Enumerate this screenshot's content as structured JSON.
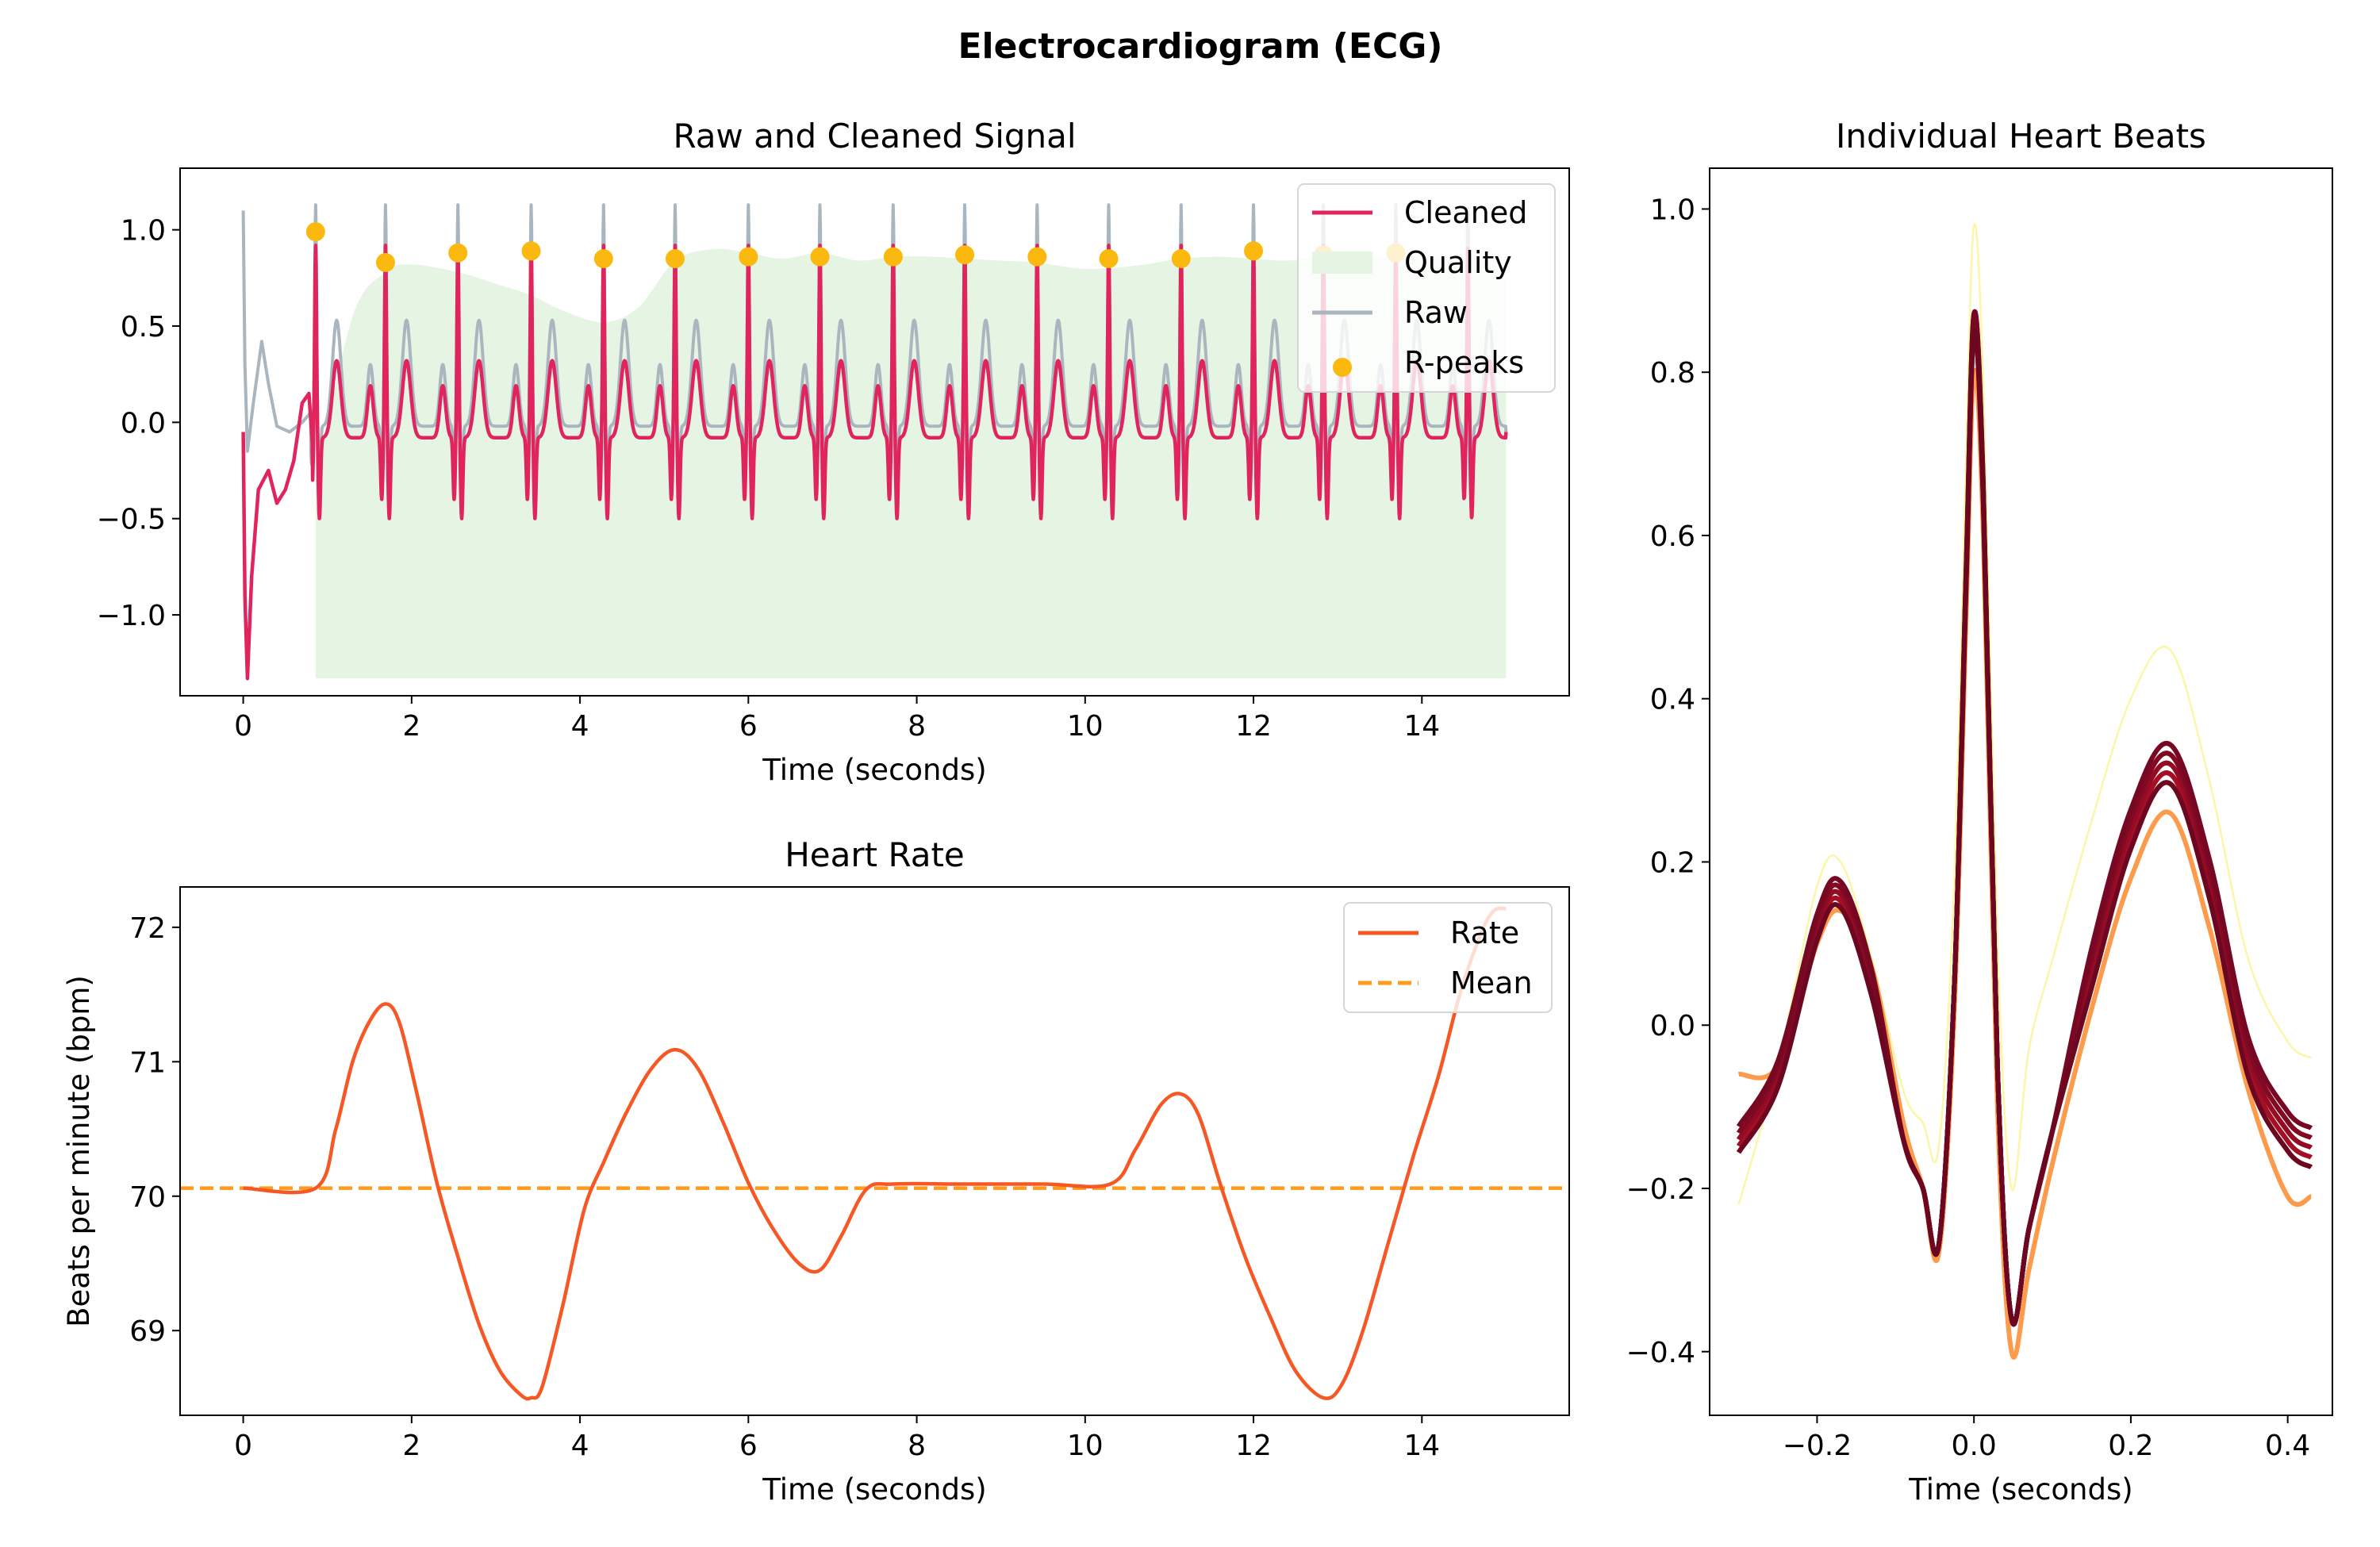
{
  "figure": {
    "suptitle": "Electrocardiogram (ECG)"
  },
  "colors": {
    "cleaned": "#e0245e",
    "raw": "#a9b6bf",
    "quality": "#e6f4e4",
    "rpeaks": "#fbb80f",
    "rate": "#f65825",
    "mean": "#ff9a1a"
  },
  "chart_data": [
    {
      "id": "raw-cleaned",
      "type": "line",
      "title": "Raw and Cleaned Signal",
      "xlabel": "Time (seconds)",
      "ylabel": "",
      "xlim": [
        -0.75,
        15.75
      ],
      "ylim": [
        -1.42,
        1.32
      ],
      "xticks": [
        0,
        2,
        4,
        6,
        8,
        10,
        12,
        14
      ],
      "yticks": [
        1.0,
        0.5,
        0.0,
        -0.5,
        -1.0
      ],
      "ytick_labels": [
        "1.0",
        "0.5",
        "0.0",
        "−0.5",
        "−1.0"
      ],
      "legend": {
        "position": "upper right",
        "entries": [
          "Cleaned",
          "Quality",
          "Raw",
          "R-peaks"
        ]
      },
      "rpeaks": {
        "x": [
          0.86,
          1.69,
          2.55,
          3.42,
          4.28,
          5.13,
          6.0,
          6.85,
          7.72,
          8.57,
          9.43,
          10.28,
          11.14,
          12.0,
          12.83,
          13.69
        ],
        "y": [
          0.99,
          0.83,
          0.88,
          0.89,
          0.85,
          0.85,
          0.86,
          0.86,
          0.86,
          0.87,
          0.86,
          0.85,
          0.85,
          0.89,
          0.87,
          0.88
        ]
      },
      "quality": {
        "x": [
          0.86,
          1.3,
          1.69,
          2.0,
          2.55,
          3.0,
          3.42,
          3.8,
          4.28,
          4.7,
          5.13,
          5.6,
          6.0,
          6.4,
          6.85,
          7.3,
          7.72,
          8.2,
          8.57,
          9.0,
          9.43,
          9.9,
          10.28,
          10.7,
          11.14,
          11.6,
          12.0,
          12.4,
          12.83,
          13.2,
          13.69,
          14.2,
          15.0
        ],
        "y": [
          -0.3,
          0.55,
          0.78,
          0.82,
          0.78,
          0.72,
          0.66,
          0.58,
          0.52,
          0.6,
          0.84,
          0.9,
          0.88,
          0.85,
          0.88,
          0.84,
          0.86,
          0.86,
          0.85,
          0.84,
          0.83,
          0.8,
          0.8,
          0.82,
          0.85,
          0.86,
          0.85,
          0.84,
          0.86,
          0.85,
          0.86,
          0.86,
          0.86
        ],
        "baseline": -1.33
      },
      "signal": {
        "duration": 15.0,
        "beat_interval": 0.857,
        "first_peak": 0.86,
        "cleaned_start": [
          [
            0.0,
            -0.05
          ],
          [
            0.02,
            -0.9
          ],
          [
            0.05,
            -1.33
          ],
          [
            0.1,
            -0.8
          ],
          [
            0.18,
            -0.35
          ],
          [
            0.3,
            -0.25
          ],
          [
            0.4,
            -0.42
          ],
          [
            0.5,
            -0.35
          ],
          [
            0.6,
            -0.2
          ],
          [
            0.7,
            0.1
          ],
          [
            0.78,
            0.15
          ],
          [
            0.82,
            -0.1
          ]
        ],
        "raw_start": [
          [
            0.0,
            1.1
          ],
          [
            0.02,
            0.3
          ],
          [
            0.05,
            -0.15
          ],
          [
            0.12,
            0.1
          ],
          [
            0.22,
            0.42
          ],
          [
            0.3,
            0.2
          ],
          [
            0.4,
            -0.02
          ],
          [
            0.55,
            -0.05
          ],
          [
            0.7,
            0.0
          ],
          [
            0.8,
            0.05
          ]
        ],
        "end": 15.0,
        "end_value": -0.05
      }
    },
    {
      "id": "heart-rate",
      "type": "line",
      "title": "Heart Rate",
      "xlabel": "Time (seconds)",
      "ylabel": "Beats per minute (bpm)",
      "xlim": [
        -0.75,
        15.75
      ],
      "ylim": [
        68.37,
        72.3
      ],
      "xticks": [
        0,
        2,
        4,
        6,
        8,
        10,
        12,
        14
      ],
      "yticks": [
        72,
        71,
        70,
        69
      ],
      "legend": {
        "position": "upper right",
        "entries": [
          "Rate",
          "Mean"
        ]
      },
      "mean": 70.06,
      "rate": {
        "x": [
          0.0,
          0.86,
          1.1,
          1.3,
          1.5,
          1.69,
          1.85,
          2.05,
          2.3,
          2.55,
          2.8,
          3.05,
          3.3,
          3.42,
          3.55,
          3.8,
          4.05,
          4.28,
          4.55,
          4.85,
          5.13,
          5.4,
          5.7,
          6.0,
          6.3,
          6.6,
          6.85,
          7.1,
          7.4,
          7.72,
          8.5,
          9.5,
          10.3,
          10.6,
          10.9,
          11.14,
          11.35,
          11.6,
          11.9,
          12.2,
          12.5,
          12.83,
          13.05,
          13.3,
          13.6,
          13.9,
          14.2,
          14.45,
          14.7,
          14.85,
          15.0
        ],
        "y": [
          70.06,
          70.06,
          70.5,
          71.0,
          71.3,
          71.43,
          71.3,
          70.8,
          70.1,
          69.55,
          69.05,
          68.7,
          68.52,
          68.5,
          68.58,
          69.2,
          69.9,
          70.25,
          70.62,
          70.95,
          71.09,
          70.95,
          70.55,
          70.1,
          69.75,
          69.5,
          69.45,
          69.7,
          70.05,
          70.09,
          70.09,
          70.09,
          70.09,
          70.35,
          70.68,
          70.76,
          70.6,
          70.1,
          69.55,
          69.1,
          68.7,
          68.5,
          68.6,
          69.0,
          69.65,
          70.3,
          70.9,
          71.5,
          71.95,
          72.12,
          72.14
        ]
      }
    },
    {
      "id": "heart-beats",
      "type": "line",
      "title": "Individual Heart Beats",
      "xlabel": "Time (seconds)",
      "ylabel": "",
      "xlim": [
        -0.337,
        0.457
      ],
      "ylim": [
        -0.478,
        1.05
      ],
      "xticks": [
        -0.2,
        0.0,
        0.2,
        0.4
      ],
      "xtick_labels": [
        "−0.2",
        "0.0",
        "0.2",
        "0.4"
      ],
      "yticks": [
        1.0,
        0.8,
        0.6,
        0.4,
        0.2,
        0.0,
        -0.2,
        -0.4
      ],
      "ytick_labels": [
        "1.0",
        "0.8",
        "0.6",
        "0.4",
        "0.2",
        "0.0",
        "−0.2",
        "−0.4"
      ],
      "beat_count": 16,
      "beat_x": [
        -0.3,
        -0.25,
        -0.2,
        -0.17,
        -0.13,
        -0.09,
        -0.065,
        -0.045,
        -0.025,
        -0.01,
        0.0,
        0.012,
        0.03,
        0.048,
        0.07,
        0.1,
        0.15,
        0.2,
        0.25,
        0.3,
        0.35,
        0.4,
        0.43
      ],
      "beat_template": [
        -0.14,
        -0.06,
        0.12,
        0.16,
        0.05,
        -0.14,
        -0.2,
        -0.27,
        0.05,
        0.55,
        0.86,
        0.65,
        -0.05,
        -0.36,
        -0.25,
        -0.13,
        0.07,
        0.24,
        0.32,
        0.18,
        -0.04,
        -0.13,
        -0.15
      ],
      "beat_light": [
        -0.22,
        -0.05,
        0.17,
        0.2,
        0.08,
        -0.08,
        -0.12,
        -0.15,
        0.18,
        0.7,
        0.98,
        0.78,
        0.1,
        -0.2,
        -0.03,
        0.08,
        0.25,
        0.4,
        0.46,
        0.3,
        0.08,
        -0.02,
        -0.04
      ],
      "beat_outlier": [
        -0.06,
        -0.05,
        0.1,
        0.14,
        0.07,
        -0.12,
        -0.2,
        -0.28,
        0.02,
        0.5,
        0.8,
        0.6,
        -0.1,
        -0.4,
        -0.3,
        -0.17,
        0.02,
        0.18,
        0.26,
        0.12,
        -0.08,
        -0.21,
        -0.21
      ],
      "beat_colors": [
        "#fbf6a8",
        "#f5e78c",
        "#fcd27a",
        "#fdb65f",
        "#fd9b4c",
        "#fb7e3c",
        "#f36134",
        "#ea4a2c",
        "#de3324",
        "#cd2022",
        "#ba1224",
        "#a50f26",
        "#930b25",
        "#820924",
        "#760823",
        "#6c0722"
      ]
    }
  ]
}
